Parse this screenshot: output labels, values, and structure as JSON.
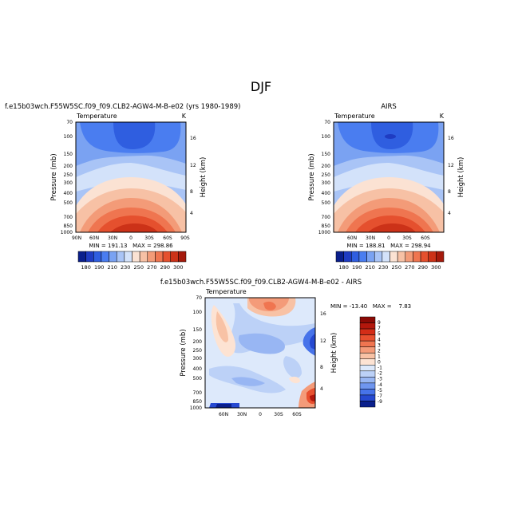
{
  "figure_title": "DJF",
  "chart_data": [
    {
      "type": "heatmap",
      "title": "f.e15b03wch.F55W5SC.f09_f09.CLB2-AGW4-M-B-e02 (yrs 1980-1989)",
      "subtitle_left": "Temperature",
      "subtitle_right": "K",
      "ylabel": "Pressure (mb)",
      "ylabel_right": "Height (km)",
      "y_ticks": [
        "70",
        "100",
        "150",
        "200",
        "250",
        "300",
        "400",
        "500",
        "700",
        "850",
        "1000"
      ],
      "y_right_ticks": [
        "16",
        "12",
        "8",
        "4"
      ],
      "x_ticks": [
        "90N",
        "60N",
        "30N",
        "0",
        "30S",
        "60S",
        "90S"
      ],
      "stats": "MIN = 191.13   MAX = 298.86",
      "ylim": [
        1000,
        70
      ],
      "xlim": [
        "90N",
        "90S"
      ]
    },
    {
      "type": "heatmap",
      "title": "AIRS",
      "subtitle_left": "Temperature",
      "subtitle_right": "K",
      "ylabel": "Pressure (mb)",
      "ylabel_right": "Height (km)",
      "y_ticks": [
        "70",
        "100",
        "150",
        "200",
        "250",
        "300",
        "400",
        "500",
        "700",
        "850",
        "1000"
      ],
      "y_right_ticks": [
        "16",
        "12",
        "8",
        "4"
      ],
      "x_ticks": [
        "60N",
        "30N",
        "0",
        "30S",
        "60S"
      ],
      "stats": "MIN = 188.81   MAX = 298.94",
      "ylim": [
        1000,
        70
      ]
    },
    {
      "type": "heatmap",
      "title": "f.e15b03wch.F55W5SC.f09_f09.CLB2-AGW4-M-B-e02 - AIRS",
      "subtitle_left": "Temperature",
      "ylabel": "Pressure (mb)",
      "ylabel_right": "Height (km)",
      "y_ticks": [
        "70",
        "100",
        "150",
        "200",
        "250",
        "300",
        "400",
        "500",
        "700",
        "850",
        "1000"
      ],
      "y_right_ticks": [
        "16",
        "12",
        "8",
        "4"
      ],
      "x_ticks": [
        "60N",
        "30N",
        "0",
        "30S",
        "60S"
      ],
      "stats": "MIN = -13.40   MAX =    7.83",
      "ylim": [
        1000,
        70
      ]
    }
  ],
  "colorbar_abs": {
    "labels": [
      "180",
      "190",
      "210",
      "230",
      "250",
      "270",
      "290",
      "300"
    ],
    "colors": [
      "#0a1f8c",
      "#1f3cc2",
      "#2f5ee0",
      "#4a7df0",
      "#7aa2f2",
      "#a9c4f6",
      "#d3e2fa",
      "#fbe2d3",
      "#f7c1a5",
      "#f39b78",
      "#ef7550",
      "#e5502e",
      "#cc3218",
      "#a51a0c"
    ]
  },
  "colorbar_diff": {
    "labels": [
      "9",
      "7",
      "5",
      "4",
      "3",
      "2",
      "1",
      "0",
      "-1",
      "-2",
      "-3",
      "-4",
      "-5",
      "-7",
      "-9"
    ],
    "colors": [
      "#8b0a05",
      "#b3170c",
      "#d42d17",
      "#e8502f",
      "#f07550",
      "#f49b79",
      "#f8c2a5",
      "#fde3d3",
      "#dde9fb",
      "#bcd1f7",
      "#98b6f3",
      "#6f96ef",
      "#4773ea",
      "#2649d1",
      "#0a1f8c"
    ]
  },
  "colors": {
    "deep_blue": "#1f4fd9",
    "mid_blue": "#4a7df0",
    "light_blue": "#a9c4f6",
    "pale_blue": "#dbe7fb",
    "pale_red": "#fbe2d3",
    "mid_red": "#f39b78",
    "deep_red": "#cc3218"
  }
}
